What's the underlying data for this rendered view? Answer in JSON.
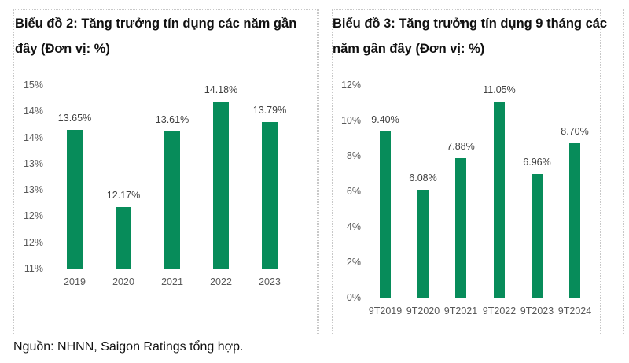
{
  "charts": [
    {
      "title_line1": "Biểu đồ 2: Tăng trưởng tín dụng các năm gần",
      "title_line2": "đây (Đơn vị: %)",
      "yticks": [
        "15%",
        "14%",
        "14%",
        "13%",
        "13%",
        "12%",
        "12%",
        "11%"
      ],
      "categories": [
        "2019",
        "2020",
        "2021",
        "2022",
        "2023"
      ],
      "labels": [
        "13.65%",
        "12.17%",
        "13.61%",
        "14.18%",
        "13.79%"
      ]
    },
    {
      "title_line1": "Biểu đồ 3: Tăng trưởng tín dụng 9 tháng các",
      "title_line2": "năm gần đây (Đơn vị: %)",
      "yticks": [
        "12%",
        "10%",
        "8%",
        "6%",
        "4%",
        "2%",
        "0%"
      ],
      "categories": [
        "9T2019",
        "9T2020",
        "9T2021",
        "9T2022",
        "9T2023",
        "9T2024"
      ],
      "labels": [
        "9.40%",
        "6.08%",
        "7.88%",
        "11.05%",
        "6.96%",
        "8.70%"
      ]
    }
  ],
  "source": "Nguồn:  NHNN, Saigon Ratings tổng hợp.",
  "colors": {
    "bar": "#078c5a",
    "axis": "#d0d0d0",
    "tick_text": "#595959"
  },
  "chart_data": [
    {
      "type": "bar",
      "title": "Biểu đồ 2: Tăng trưởng tín dụng các năm gần đây (Đơn vị: %)",
      "categories": [
        "2019",
        "2020",
        "2021",
        "2022",
        "2023"
      ],
      "values": [
        13.65,
        12.17,
        13.61,
        14.18,
        13.79
      ],
      "xlabel": "",
      "ylabel": "%",
      "ylim": [
        11,
        14.5
      ],
      "ytick_labels": [
        "11%",
        "12%",
        "12%",
        "13%",
        "13%",
        "14%",
        "14%",
        "15%"
      ],
      "grid": false,
      "legend": null
    },
    {
      "type": "bar",
      "title": "Biểu đồ 3: Tăng trưởng tín dụng 9 tháng các năm gần đây (Đơn vị: %)",
      "categories": [
        "9T2019",
        "9T2020",
        "9T2021",
        "9T2022",
        "9T2023",
        "9T2024"
      ],
      "values": [
        9.4,
        6.08,
        7.88,
        11.05,
        6.96,
        8.7
      ],
      "xlabel": "",
      "ylabel": "%",
      "ylim": [
        0,
        12
      ],
      "ytick_labels": [
        "0%",
        "2%",
        "4%",
        "6%",
        "8%",
        "10%",
        "12%"
      ],
      "grid": false,
      "legend": null
    }
  ]
}
